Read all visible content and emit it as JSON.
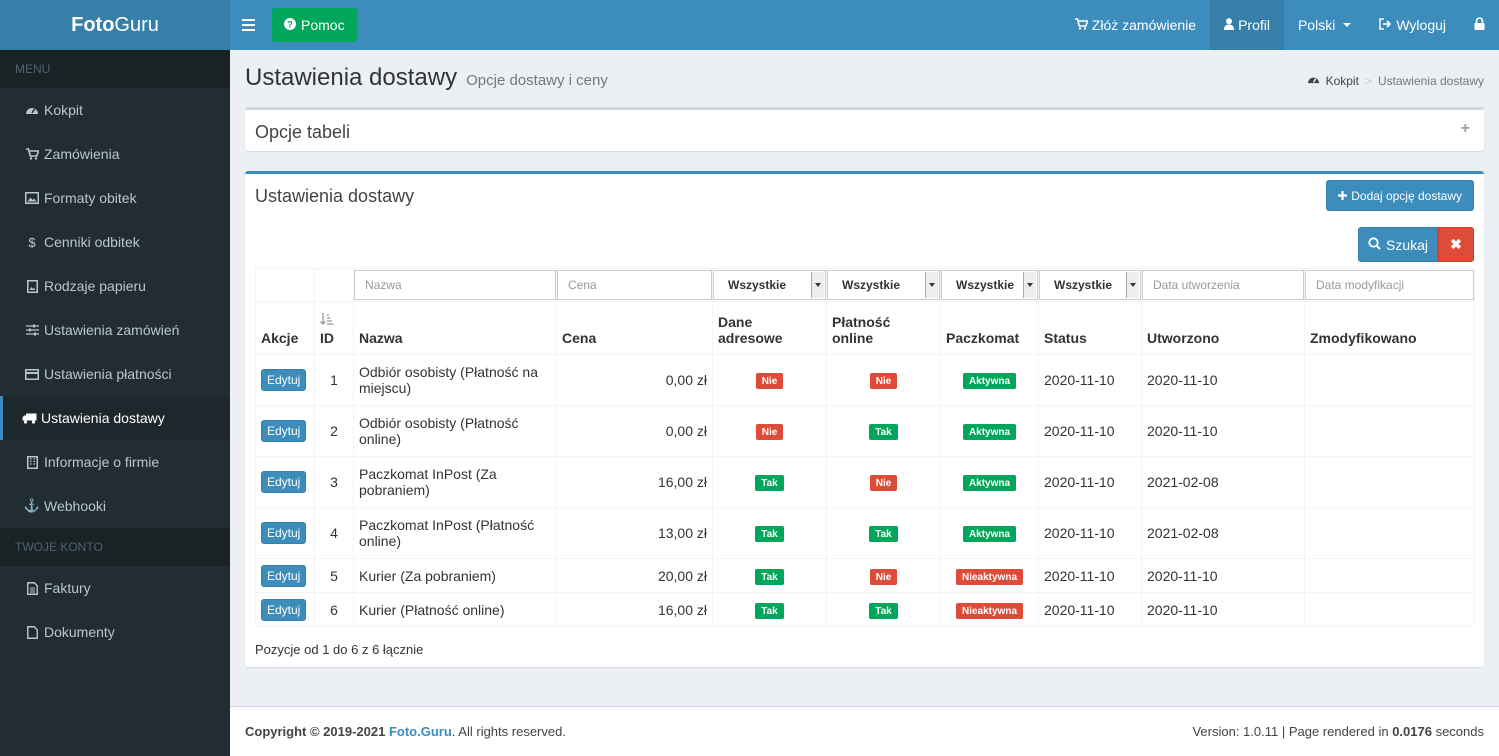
{
  "brand": {
    "bold": "Foto",
    "light": "Guru"
  },
  "header": {
    "help_label": "Pomoc",
    "nav": [
      {
        "label": "Złóż zamówienie",
        "icon": "cart-icon"
      },
      {
        "label": "Profil",
        "icon": "user-icon"
      },
      {
        "label": "Polski",
        "icon": "caret-icon"
      },
      {
        "label": "Wyloguj",
        "icon": "sign-out-icon"
      }
    ]
  },
  "sidebar": {
    "menu_header": "MENU",
    "account_header": "TWOJE KONTO",
    "items": [
      {
        "label": "Kokpit",
        "icon": "dashboard-icon"
      },
      {
        "label": "Zamówienia",
        "icon": "cart-icon"
      },
      {
        "label": "Formaty obitek",
        "icon": "image-icon"
      },
      {
        "label": "Cenniki odbitek",
        "icon": "dollar-icon"
      },
      {
        "label": "Rodzaje papieru",
        "icon": "paper-image-icon"
      },
      {
        "label": "Ustawienia zamówień",
        "icon": "sliders-icon"
      },
      {
        "label": "Ustawienia płatności",
        "icon": "credit-card-icon"
      },
      {
        "label": "Ustawienia dostawy",
        "icon": "truck-icon"
      },
      {
        "label": "Informacje o firmie",
        "icon": "building-icon"
      },
      {
        "label": "Webhooki",
        "icon": "anchor-icon"
      }
    ],
    "account_items": [
      {
        "label": "Faktury",
        "icon": "file-text-icon"
      },
      {
        "label": "Dokumenty",
        "icon": "file-icon"
      }
    ]
  },
  "page": {
    "title": "Ustawienia dostawy",
    "subtitle": "Opcje dostawy i ceny",
    "breadcrumb_home": "Kokpit",
    "breadcrumb_current": "Ustawienia dostawy"
  },
  "options_box": {
    "title": "Opcje tabeli",
    "toggle": "+"
  },
  "main_box": {
    "title": "Ustawienia dostawy",
    "add_button": "Dodaj opcję dostawy",
    "search_button": "Szukaj",
    "clear_button": "✖"
  },
  "filters": {
    "name_placeholder": "Nazwa",
    "price_placeholder": "Cena",
    "address_select": "Wszystkie",
    "online_select": "Wszystkie",
    "locker_select": "Wszystkie",
    "status_select": "Wszystkie",
    "created_placeholder": "Data utworzenia",
    "modified_placeholder": "Data modyfikacji"
  },
  "columns": {
    "actions": "Akcje",
    "id": "ID",
    "name": "Nazwa",
    "price": "Cena",
    "address_1": "Dane",
    "address_2": "adresowe",
    "online_1": "Płatność",
    "online_2": "online",
    "locker": "Paczkomat",
    "status": "Status",
    "created": "Utworzono",
    "modified": "Zmodyfikowano"
  },
  "rows": [
    {
      "edit": "Edytuj",
      "id": "1",
      "name": "Odbiór osobisty (Płatność na miejscu)",
      "price": "0,00 zł",
      "address": "Nie",
      "online": "Nie",
      "locker": "Aktywna",
      "status": "2020-11-10",
      "created": "2020-11-10",
      "modified": ""
    },
    {
      "edit": "Edytuj",
      "id": "2",
      "name": "Odbiór osobisty (Płatność online)",
      "price": "0,00 zł",
      "address": "Nie",
      "online": "Tak",
      "locker": "Aktywna",
      "status": "2020-11-10",
      "created": "2020-11-10",
      "modified": ""
    },
    {
      "edit": "Edytuj",
      "id": "3",
      "name": "Paczkomat InPost (Za pobraniem)",
      "price": "16,00 zł",
      "address": "Tak",
      "online": "Nie",
      "locker": "Aktywna",
      "status": "2020-11-10",
      "created": "2021-02-08",
      "modified": ""
    },
    {
      "edit": "Edytuj",
      "id": "4",
      "name": "Paczkomat InPost (Płatność online)",
      "price": "13,00 zł",
      "address": "Tak",
      "online": "Tak",
      "locker": "Aktywna",
      "status": "2020-11-10",
      "created": "2021-02-08",
      "modified": ""
    },
    {
      "edit": "Edytuj",
      "id": "5",
      "name": "Kurier (Za pobraniem)",
      "price": "20,00 zł",
      "address": "Tak",
      "online": "Nie",
      "locker": "Nieaktywna",
      "status": "2020-11-10",
      "created": "2020-11-10",
      "modified": ""
    },
    {
      "edit": "Edytuj",
      "id": "6",
      "name": "Kurier (Płatność online)",
      "price": "16,00 zł",
      "address": "Tak",
      "online": "Tak",
      "locker": "Nieaktywna",
      "status": "2020-11-10",
      "created": "2020-11-10",
      "modified": ""
    }
  ],
  "summary": "Pozycje od 1 do 6 z 6 łącznie",
  "footer": {
    "copyright_prefix": "Copyright © 2019-2021 ",
    "copyright_link": "Foto.Guru",
    "copyright_suffix": ". All rights reserved.",
    "version_prefix": "Version: 1.0.11 | Page rendered in ",
    "render_time": "0.0176",
    "version_suffix": " seconds"
  },
  "colors": {
    "primary": "#3c8dbc",
    "success": "#00a65a",
    "danger": "#dd4b39",
    "sidebar_bg": "#222d32"
  }
}
